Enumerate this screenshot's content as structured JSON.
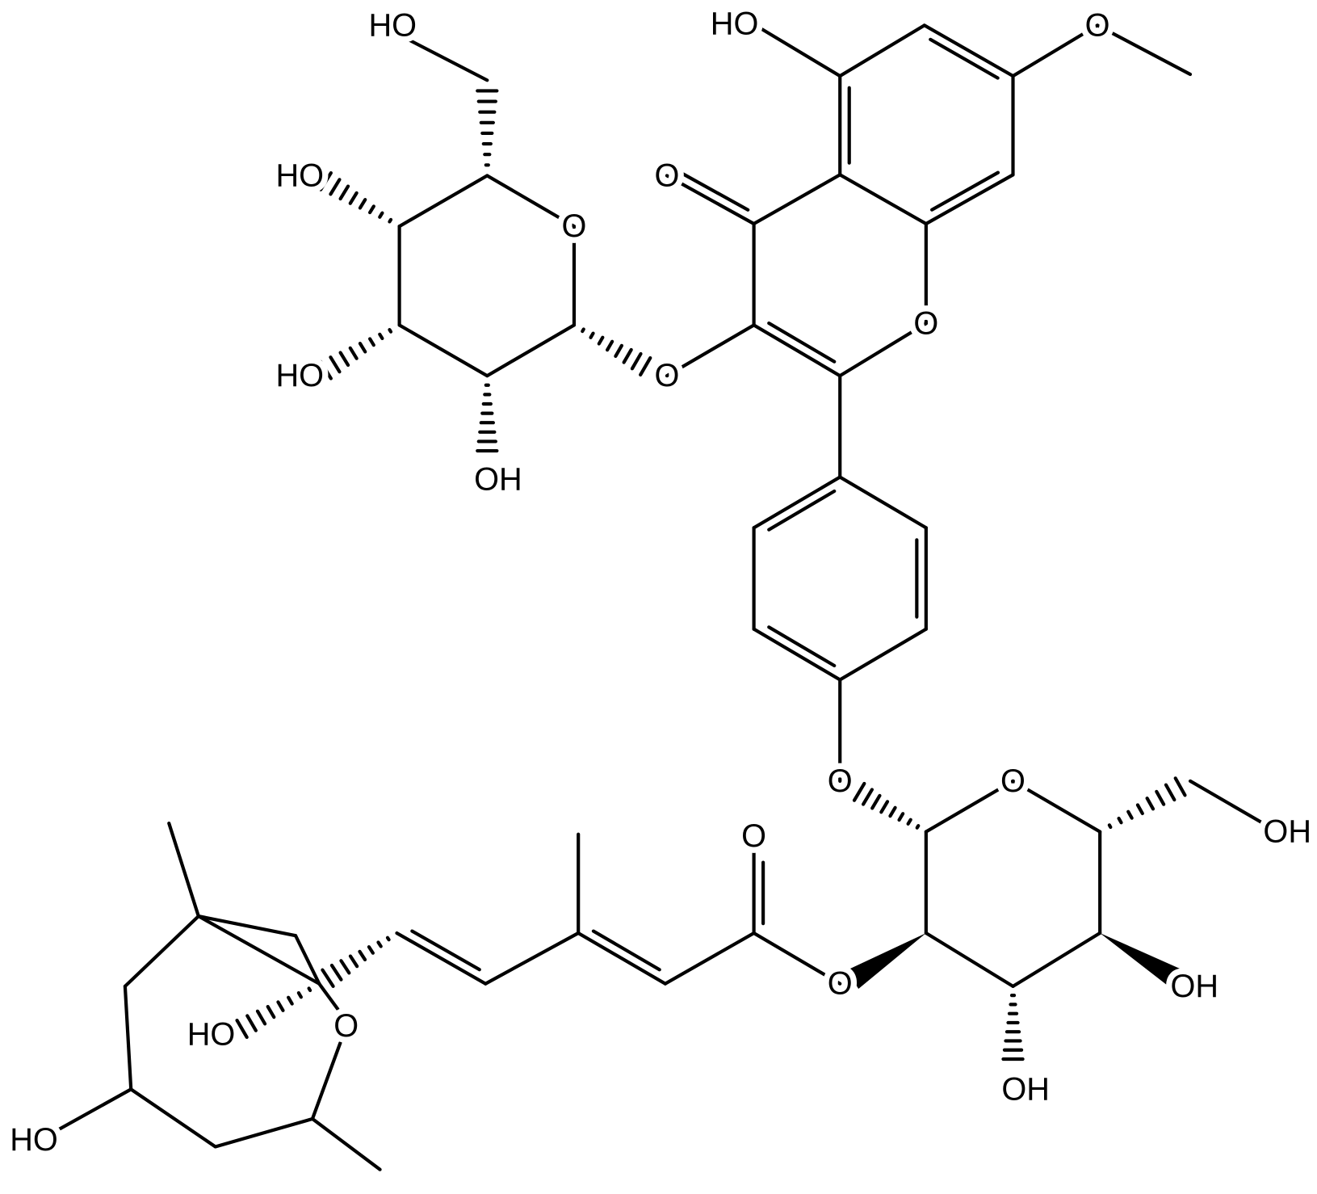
{
  "labels": [
    "HO",
    "HO",
    "O",
    "O",
    "HO",
    "O",
    "O",
    "HO",
    "O",
    "OH",
    "O",
    "O",
    "OH",
    "O",
    "OH",
    "O",
    "OH",
    "HO",
    "O",
    "HO"
  ]
}
